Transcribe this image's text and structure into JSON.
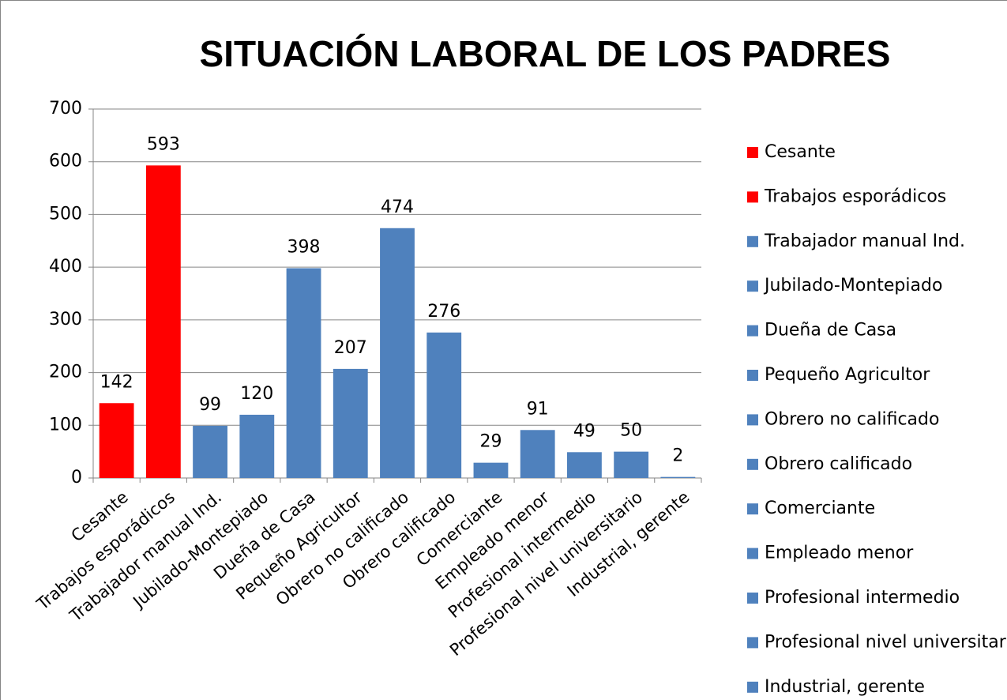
{
  "chart_data": {
    "type": "bar",
    "title": "SITUACIÓN LABORAL DE LOS PADRES",
    "categories": [
      "Cesante",
      "Trabajos esporádicos",
      "Trabajador manual Ind.",
      "Jubilado-Montepiado",
      "Dueña de Casa",
      "Pequeño Agricultor",
      "Obrero no calificado",
      "Obrero calificado",
      "Comerciante",
      "Empleado menor",
      "Profesional intermedio",
      "Profesional nivel universitario",
      "Industrial, gerente"
    ],
    "values": [
      142,
      593,
      99,
      120,
      398,
      207,
      474,
      276,
      29,
      91,
      49,
      50,
      2
    ],
    "colors": [
      "#ff0000",
      "#ff0000",
      "#4f81bd",
      "#4f81bd",
      "#4f81bd",
      "#4f81bd",
      "#4f81bd",
      "#4f81bd",
      "#4f81bd",
      "#4f81bd",
      "#4f81bd",
      "#4f81bd",
      "#4f81bd"
    ],
    "ylim": [
      0,
      700
    ],
    "yticks": [
      0,
      100,
      200,
      300,
      400,
      500,
      600,
      700
    ],
    "grid": true,
    "legend": "right"
  }
}
